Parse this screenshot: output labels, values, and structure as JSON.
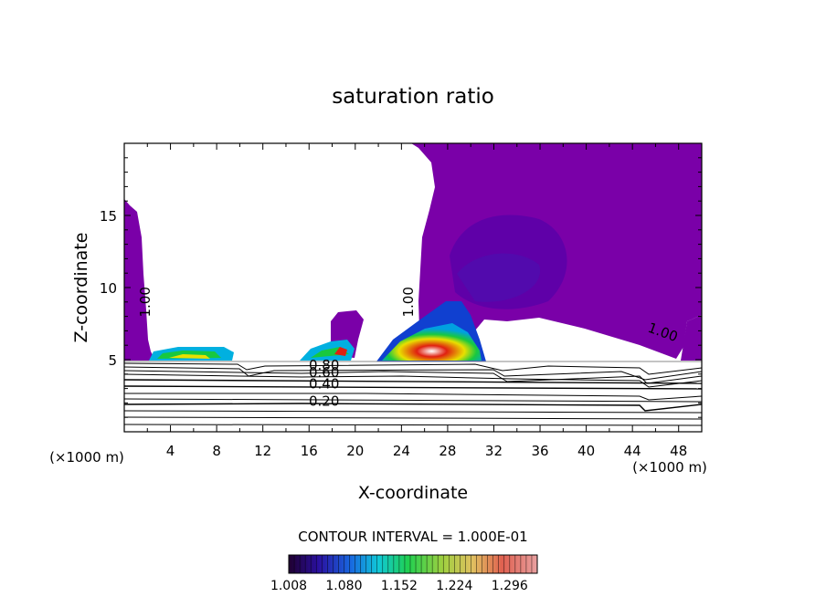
{
  "chart_data": {
    "type": "contour",
    "title": "saturation ratio",
    "xlabel": "X-coordinate",
    "ylabel": "Z-coordinate",
    "x_unit_left": "(×1000 m)",
    "x_unit_right": "(×1000 m)",
    "xlim": [
      0,
      50
    ],
    "ylim": [
      0,
      20
    ],
    "xticks": [
      4,
      8,
      12,
      16,
      20,
      24,
      28,
      32,
      36,
      40,
      44,
      48
    ],
    "yticks": [
      5,
      10,
      15
    ],
    "contour_line_labels": [
      {
        "text": "1.00",
        "x": 2.2,
        "z": 9.0
      },
      {
        "text": "1.00",
        "x": 25.0,
        "z": 9.0
      },
      {
        "text": "1.00",
        "x": 46.5,
        "z": 6.6
      },
      {
        "text": "0.80",
        "x": 17.3,
        "z": 4.3
      },
      {
        "text": "0.60",
        "x": 17.3,
        "z": 3.8
      },
      {
        "text": "0.40",
        "x": 17.3,
        "z": 3.0
      },
      {
        "text": "0.20",
        "x": 17.3,
        "z": 1.8
      }
    ],
    "contour_interval_text": "CONTOUR INTERVAL = 1.000E-01",
    "colorbar": {
      "min": 1.008,
      "max": 1.332,
      "tick_labels": [
        "1.008",
        "1.080",
        "1.152",
        "1.224",
        "1.296"
      ]
    },
    "colors": {
      "supersat_base": "#7a00a8",
      "supersat_deep": "#5200a0",
      "cyan": "#00c8e8",
      "green": "#18c840",
      "yellow": "#e8e000",
      "red": "#e02010"
    }
  }
}
